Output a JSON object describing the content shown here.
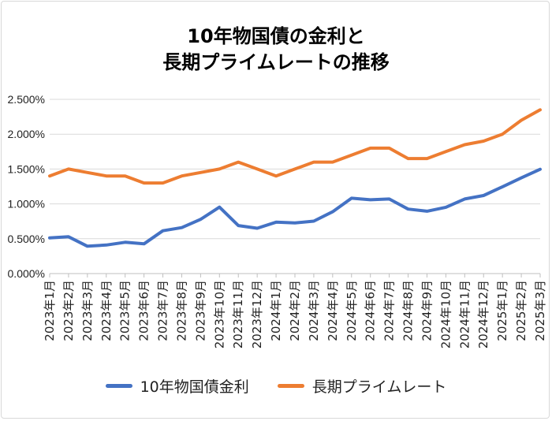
{
  "chart_data": {
    "type": "line",
    "title_lines": [
      "10年物国債の金利と",
      "長期プライムレートの推移"
    ],
    "categories": [
      "2023年1月",
      "2023年2月",
      "2023年3月",
      "2023年4月",
      "2023年5月",
      "2023年6月",
      "2023年7月",
      "2023年8月",
      "2023年9月",
      "2023年10月",
      "2023年11月",
      "2023年12月",
      "2024年1月",
      "2024年2月",
      "2024年3月",
      "2024年4月",
      "2024年5月",
      "2024年6月",
      "2024年7月",
      "2024年8月",
      "2024年9月",
      "2024年10月",
      "2024年11月",
      "2024年12月",
      "2025年1月",
      "2025年2月",
      "2025年3月"
    ],
    "series": [
      {
        "name": "10年物国債金利",
        "color": "#4472c4",
        "values": [
          0.513,
          0.528,
          0.393,
          0.41,
          0.449,
          0.427,
          0.614,
          0.659,
          0.778,
          0.954,
          0.689,
          0.651,
          0.737,
          0.726,
          0.752,
          0.887,
          1.081,
          1.059,
          1.07,
          0.925,
          0.895,
          0.951,
          1.07,
          1.12,
          1.246,
          1.373,
          1.497
        ]
      },
      {
        "name": "長期プライムレート",
        "color": "#ed7d31",
        "values": [
          1.4,
          1.5,
          1.45,
          1.4,
          1.4,
          1.3,
          1.3,
          1.4,
          1.45,
          1.5,
          1.6,
          1.5,
          1.4,
          1.5,
          1.6,
          1.6,
          1.7,
          1.8,
          1.8,
          1.65,
          1.65,
          1.75,
          1.85,
          1.9,
          2.0,
          2.2,
          2.35
        ]
      }
    ],
    "ylim": [
      0,
      2.5
    ],
    "yticks": [
      "0.000%",
      "0.500%",
      "1.000%",
      "1.500%",
      "2.000%",
      "2.500%"
    ],
    "ytick_values": [
      0,
      0.5,
      1,
      1.5,
      2,
      2.5
    ],
    "grid": true,
    "legend": "bottom"
  }
}
